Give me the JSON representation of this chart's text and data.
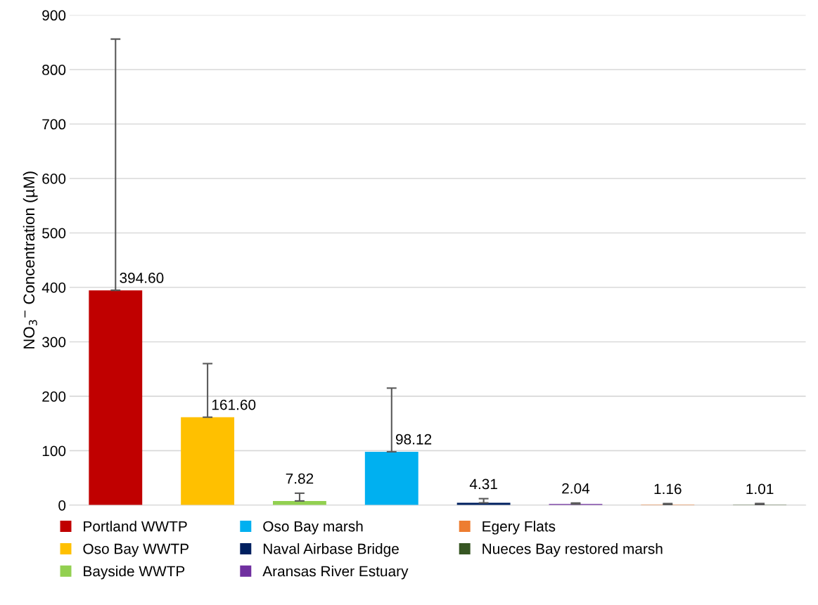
{
  "chart_data": {
    "type": "bar",
    "ylabel": "NO$_{3}$$^{−}$ Concentration (µM)",
    "categories": [
      null,
      null,
      null,
      null,
      null,
      null,
      null,
      null
    ],
    "series": [
      {
        "name": "Portland WWTP",
        "color": "#c00000",
        "values": [
          394.6,
          null,
          null,
          null,
          null,
          null,
          null,
          null
        ],
        "errors": [
          [
            394.6,
            856
          ],
          null,
          null,
          null,
          null,
          null,
          null,
          null
        ],
        "value_labels": [
          "394.60",
          null,
          null,
          null,
          null,
          null,
          null,
          null
        ]
      },
      {
        "name": "Oso Bay WWTP",
        "color": "#ffc000",
        "values": [
          null,
          161.6,
          null,
          null,
          null,
          null,
          null,
          null
        ],
        "errors": [
          null,
          [
            161.6,
            260
          ],
          null,
          null,
          null,
          null,
          null,
          null
        ],
        "value_labels": [
          null,
          "161.60",
          null,
          null,
          null,
          null,
          null,
          null
        ]
      },
      {
        "name": "Bayside WWTP",
        "color": "#92d050",
        "values": [
          null,
          null,
          7.82,
          null,
          null,
          null,
          null,
          null
        ],
        "errors": [
          null,
          null,
          [
            7.82,
            22
          ],
          null,
          null,
          null,
          null,
          null
        ],
        "value_labels": [
          null,
          null,
          "7.82",
          null,
          null,
          null,
          null,
          null
        ]
      },
      {
        "name": "Oso Bay marsh",
        "color": "#00b0f0",
        "values": [
          null,
          null,
          null,
          98.12,
          null,
          null,
          null,
          null
        ],
        "errors": [
          null,
          null,
          null,
          [
            98.12,
            215
          ],
          null,
          null,
          null,
          null
        ],
        "value_labels": [
          null,
          null,
          null,
          "98.12",
          null,
          null,
          null,
          null
        ]
      },
      {
        "name": "Naval Airbase Bridge",
        "color": "#002060",
        "values": [
          null,
          null,
          null,
          null,
          4.31,
          null,
          null,
          null
        ],
        "errors": [
          null,
          null,
          null,
          null,
          [
            4.31,
            12
          ],
          null,
          null,
          null
        ],
        "value_labels": [
          null,
          null,
          null,
          null,
          "4.31",
          null,
          null,
          null
        ]
      },
      {
        "name": "Aransas River Estuary",
        "color": "#7030a0",
        "values": [
          null,
          null,
          null,
          null,
          null,
          2.04,
          null,
          null
        ],
        "errors": [
          null,
          null,
          null,
          null,
          null,
          [
            2.04,
            4
          ],
          null,
          null
        ],
        "value_labels": [
          null,
          null,
          null,
          null,
          null,
          "2.04",
          null,
          null
        ]
      },
      {
        "name": "Egery Flats",
        "color": "#ed7d31",
        "values": [
          null,
          null,
          null,
          null,
          null,
          null,
          1.16,
          null
        ],
        "errors": [
          null,
          null,
          null,
          null,
          null,
          null,
          [
            1.16,
            3
          ],
          null
        ],
        "value_labels": [
          null,
          null,
          null,
          null,
          null,
          null,
          "1.16",
          null
        ]
      },
      {
        "name": "Nueces Bay restored marsh",
        "color": "#375623",
        "values": [
          null,
          null,
          null,
          null,
          null,
          null,
          null,
          1.01
        ],
        "errors": [
          null,
          null,
          null,
          null,
          null,
          null,
          null,
          [
            1.01,
            3
          ]
        ],
        "value_labels": [
          null,
          null,
          null,
          null,
          null,
          null,
          null,
          "1.01"
        ]
      }
    ],
    "ylim": [
      0,
      900
    ],
    "yticks": [
      0,
      100,
      200,
      300,
      400,
      500,
      600,
      700,
      800,
      900
    ],
    "grid": "y",
    "legend": "bottom",
    "tick_labels": "y"
  }
}
